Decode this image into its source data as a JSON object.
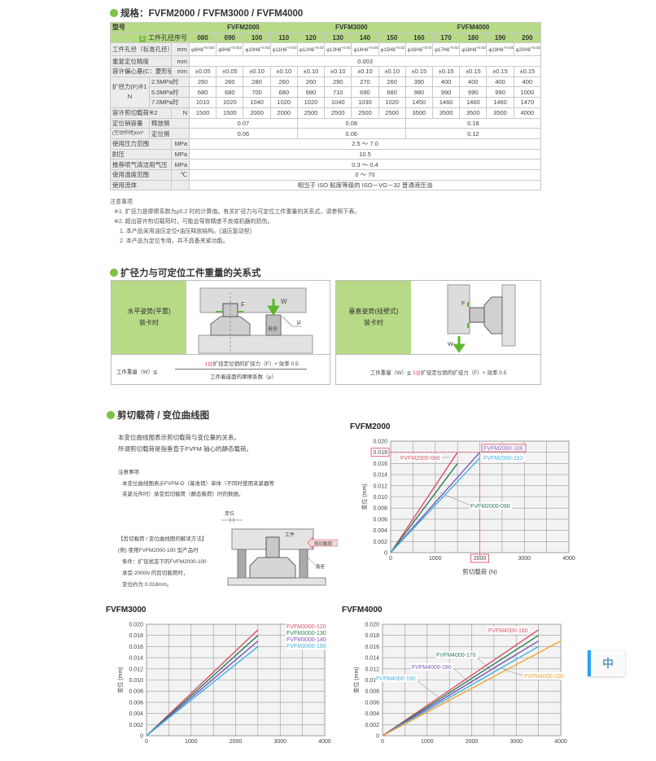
{
  "spec_section": {
    "title": "规格：FVFM2000 / FVFM3000 / FVFM4000"
  },
  "spec_table": {
    "model_label": "型号",
    "hole_no_label": "工件孔径序号",
    "badge": "1",
    "groups": [
      {
        "name": "FVFM2000",
        "sizes": [
          "080",
          "090",
          "100",
          "110"
        ]
      },
      {
        "name": "FVFM3000",
        "sizes": [
          "120",
          "130",
          "140",
          "150"
        ]
      },
      {
        "name": "FVFM4000",
        "sizes": [
          "160",
          "170",
          "180",
          "190",
          "200"
        ]
      }
    ],
    "hole_diameter": {
      "label": "工件孔径（标准孔径）",
      "unit": "mm",
      "values": [
        "φ8H8",
        "φ9H8",
        "φ10H8",
        "φ11H8",
        "φ12H8",
        "φ13H8",
        "φ14H8",
        "φ15H8",
        "φ16H8",
        "φ17H8",
        "φ18H8",
        "φ19H8",
        "φ20H8"
      ],
      "tolerances": [
        "+0.022",
        "+0.022",
        "+0.022",
        "+0.027",
        "+0.027",
        "+0.027",
        "+0.027",
        "+0.027",
        "+0.027",
        "+0.027",
        "+0.027",
        "+0.033",
        "+0.033"
      ]
    },
    "repeat_accuracy": {
      "label": "重复定位精度",
      "unit": "mm",
      "value": "0.003"
    },
    "eccentricity": {
      "label": "容许偏心量(C：菱形销)",
      "unit": "mm",
      "values": [
        "±0.05",
        "±0.05",
        "±0.10",
        "±0.10",
        "±0.10",
        "±0.10",
        "±0.10",
        "±0.10",
        "±0.15",
        "±0.15",
        "±0.15",
        "±0.15",
        "±0.15"
      ]
    },
    "expansion_force": {
      "label": "扩径力(F)※1",
      "unit": "N",
      "rows": [
        {
          "pressure": "2.5MPa时",
          "values": [
            "260",
            "260",
            "280",
            "260",
            "260",
            "290",
            "270",
            "260",
            "390",
            "400",
            "400",
            "400",
            "400"
          ]
        },
        {
          "pressure": "5.0MPa时",
          "values": [
            "680",
            "680",
            "700",
            "680",
            "680",
            "710",
            "690",
            "680",
            "980",
            "990",
            "990",
            "990",
            "1000"
          ]
        },
        {
          "pressure": "7.0MPa时",
          "values": [
            "1010",
            "1020",
            "1040",
            "1020",
            "1020",
            "1040",
            "1030",
            "1020",
            "1450",
            "1460",
            "1460",
            "1460",
            "1470"
          ]
        }
      ]
    },
    "shear_load": {
      "label": "容许剪切载荷※2",
      "unit": "N",
      "values": [
        "1500",
        "1500",
        "2000",
        "2000",
        "2500",
        "2500",
        "2500",
        "2500",
        "3500",
        "3500",
        "3500",
        "3500",
        "4000"
      ]
    },
    "pin_volume": {
      "label": "定位销容量",
      "unit_label": "(空动作时)cm³",
      "rows": [
        {
          "side": "释放侧",
          "values": [
            "0.07",
            "0.08",
            "0.18"
          ]
        },
        {
          "side": "定位侧",
          "values": [
            "0.06",
            "0.06",
            "0.12"
          ]
        }
      ]
    },
    "general_rows": [
      {
        "label": "使用压力范围",
        "unit": "MPa",
        "value": "2.5 ～ 7.0"
      },
      {
        "label": "耐压",
        "unit": "MPa",
        "value": "10.5"
      },
      {
        "label": "推荐喷气清洁用气压",
        "unit": "MPa",
        "value": "0.3 ～ 0.4"
      },
      {
        "label": "使用温度范围",
        "unit": "℃",
        "value": "0 ～ 70"
      },
      {
        "label": "使用流体",
        "unit": "",
        "value": "相当于 ISO 粘度等级的 ISO－VG－32 普通液压油"
      }
    ]
  },
  "notes": {
    "title": "注意事项",
    "items": [
      "※1. 扩径力是摩擦系数为μ0.2 时的计算值。有关扩径力与可定位工件重量的关系式，请参照下表。",
      "※2. 超出容许剪切载荷时，可能会导致精度不良或机器的损伤。",
      "1. 本产品采用油压定位•油压释放结构。(油压复动型)",
      "2. 本产品为定位专用，并不具备夹紧功能。"
    ]
  },
  "relation_section": {
    "title": "扩径力与可定位工件重量的关系式",
    "horizontal": {
      "line1": "水平姿势(平置)",
      "line2": "装卡时",
      "diagram": {
        "force": "F",
        "weight": "W",
        "mu": "μ",
        "seat": "着座"
      },
      "formula_lhs": "工件重量（W）≦",
      "numerator_red": "1台",
      "numerator": "扩径定位销的扩径力（F）× 效率 0.5",
      "denominator": "工件着座面的摩擦系数（μ）"
    },
    "vertical": {
      "line1": "垂直姿势(挂壁式)",
      "line2": "装卡时",
      "diagram": {
        "force": "F",
        "weight": "W"
      },
      "formula_lhs": "工件重量（W）≦",
      "formula_red": "1台",
      "formula_rest": "扩径定位销的扩径力（F）× 效率 0.5"
    }
  },
  "shear_section": {
    "title": "剪切载荷 / 变位曲线图",
    "intro": [
      "本变位曲线图表示剪切载荷与变位量的关系。",
      "所谓剪切载荷是指垂直于FVFM 轴心的静态载荷。"
    ],
    "notes_title": "注意事项",
    "notes": [
      "本变位曲线图表示FVFM-D（基准销）单体（不同时使用夹紧器等",
      "夹紧元件时）承受剪切载荷（静态载荷）时的数据。"
    ],
    "example": [
      "【剪切载荷 / 变位曲线图的解读方法】",
      "(例) 使用FVFM2000-100 型产品时",
      "条件：扩径状态下的FVFM2000-100",
      "承受 2000N 的剪切载荷时，",
      "变位约为 0.018mm。"
    ],
    "diagram": {
      "displacement": "变位",
      "workpiece": "工件",
      "shear_load": "剪切载荷",
      "seat": "着座"
    }
  },
  "chart_data": [
    {
      "type": "line",
      "title": "FVFM2000",
      "xlabel": "剪切载荷 (N)",
      "ylabel": "变位 (mm)",
      "xlim": [
        0,
        4000
      ],
      "ylim": [
        0,
        0.02
      ],
      "xticks": [
        "0",
        "1000",
        "2000",
        "3000",
        "4000"
      ],
      "yticks": [
        "0",
        "0.002",
        "0.004",
        "0.006",
        "0.008",
        "0.010",
        "0.012",
        "0.014",
        "0.016",
        "0.018",
        "0.020"
      ],
      "grid": true,
      "highlight": {
        "x": 2000,
        "y": 0.018,
        "x_label": "2000",
        "y_label": "0.018",
        "series": "FVFM2000-100"
      },
      "series": [
        {
          "name": "FVFM2000-080",
          "color": "#d9506a",
          "x": [
            0,
            1500
          ],
          "y": [
            0,
            0.018
          ]
        },
        {
          "name": "FVFM2000-090",
          "color": "#2d7d55",
          "x": [
            0,
            1500
          ],
          "y": [
            0,
            0.016
          ]
        },
        {
          "name": "FVFM2000-100",
          "color": "#7d55b8",
          "x": [
            0,
            2000
          ],
          "y": [
            0,
            0.018
          ]
        },
        {
          "name": "FVFM2000-110",
          "color": "#3fb2e0",
          "x": [
            0,
            2000
          ],
          "y": [
            0,
            0.017
          ]
        }
      ]
    },
    {
      "type": "line",
      "title": "FVFM3000",
      "ylabel": "变位 (mm)",
      "xlim": [
        0,
        4000
      ],
      "ylim": [
        0,
        0.02
      ],
      "xticks": [
        "0",
        "1000",
        "2000",
        "3000",
        "4000"
      ],
      "yticks": [
        "0",
        "0.002",
        "0.004",
        "0.006",
        "0.008",
        "0.010",
        "0.012",
        "0.014",
        "0.016",
        "0.018",
        "0.020"
      ],
      "grid": true,
      "series": [
        {
          "name": "FVFM3000-120",
          "color": "#d9506a",
          "x": [
            0,
            2500
          ],
          "y": [
            0,
            0.019
          ]
        },
        {
          "name": "FVFM3000-130",
          "color": "#2d7d55",
          "x": [
            0,
            2500
          ],
          "y": [
            0,
            0.018
          ]
        },
        {
          "name": "FVFM3000-140",
          "color": "#7d55b8",
          "x": [
            0,
            2500
          ],
          "y": [
            0,
            0.017
          ]
        },
        {
          "name": "FVFM3000-150",
          "color": "#3fb2e0",
          "x": [
            0,
            2500
          ],
          "y": [
            0,
            0.016
          ]
        }
      ]
    },
    {
      "type": "line",
      "title": "FVFM4000",
      "ylabel": "变位 (mm)",
      "xlim": [
        0,
        4000
      ],
      "ylim": [
        0,
        0.02
      ],
      "xticks": [
        "0",
        "1000",
        "2000",
        "3000",
        "4000"
      ],
      "yticks": [
        "0",
        "0.002",
        "0.004",
        "0.006",
        "0.008",
        "0.010",
        "0.012",
        "0.014",
        "0.016",
        "0.018",
        "0.020"
      ],
      "grid": true,
      "series": [
        {
          "name": "FVFM4000-160",
          "color": "#d9506a",
          "x": [
            0,
            3500
          ],
          "y": [
            0,
            0.019
          ]
        },
        {
          "name": "FVFM4000-170",
          "color": "#2d7d55",
          "x": [
            0,
            3500
          ],
          "y": [
            0,
            0.018
          ]
        },
        {
          "name": "FVFM4000-180",
          "color": "#7d55b8",
          "x": [
            0,
            3500
          ],
          "y": [
            0,
            0.017
          ]
        },
        {
          "name": "FVFM4000-190",
          "color": "#3fb2e0",
          "x": [
            0,
            3500
          ],
          "y": [
            0,
            0.016
          ]
        },
        {
          "name": "FVFM4000-200",
          "color": "#f5a030",
          "x": [
            0,
            4000
          ],
          "y": [
            0,
            0.017
          ]
        }
      ]
    }
  ],
  "language_button": {
    "label": "中",
    "accent": "#29a3f0"
  }
}
